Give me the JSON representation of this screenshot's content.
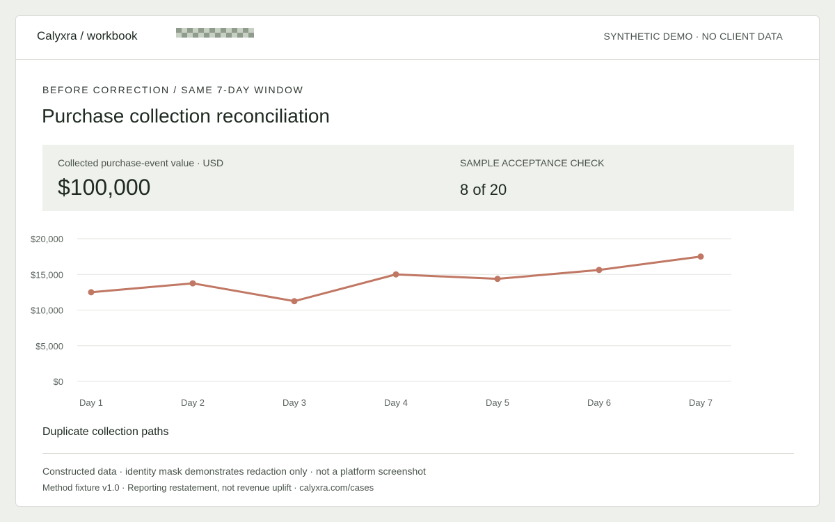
{
  "header": {
    "brand": "Calyxra / workbook",
    "demo_note": "SYNTHETIC DEMO · NO CLIENT DATA"
  },
  "page": {
    "eyebrow": "BEFORE CORRECTION / SAME 7-DAY WINDOW",
    "title": "Purchase collection reconciliation"
  },
  "summary": {
    "collected_label": "Collected purchase-event value · USD",
    "collected_value": "$100,000",
    "acceptance_label": "SAMPLE ACCEPTANCE CHECK",
    "acceptance_value": "8 of 20"
  },
  "colors": {
    "line": "#c07763",
    "grid": "#e3e6e1",
    "tick": "#5a635c",
    "mask_dark": "#8f9b8d",
    "mask_light": "#c8d0c4"
  },
  "chart_data": {
    "type": "line",
    "categories": [
      "Day 1",
      "Day 2",
      "Day 3",
      "Day 4",
      "Day 5",
      "Day 6",
      "Day 7"
    ],
    "series": [
      {
        "name": "Duplicate collection paths",
        "values": [
          12500,
          13750,
          11250,
          15000,
          14375,
          15625,
          17500
        ]
      }
    ],
    "yticks": [
      "$0",
      "$5,000",
      "$10,000",
      "$15,000",
      "$20,000"
    ],
    "ylim": [
      0,
      20000
    ],
    "grid": true,
    "legend": "bottom-left"
  },
  "legend": {
    "label": "Duplicate collection paths"
  },
  "footer": {
    "line1": "Constructed data · identity mask demonstrates redaction only · not a platform screenshot",
    "line2": "Method fixture v1.0 · Reporting restatement, not revenue uplift · calyxra.com/cases"
  }
}
